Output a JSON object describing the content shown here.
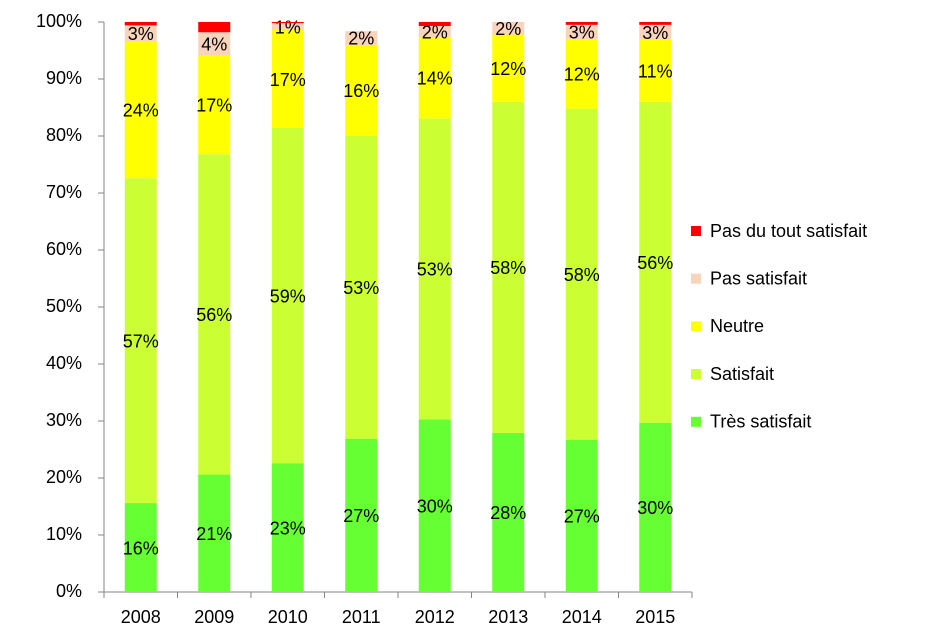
{
  "chart_data": {
    "type": "stacked_bar",
    "categories": [
      "2008",
      "2009",
      "2010",
      "2011",
      "2012",
      "2013",
      "2014",
      "2015"
    ],
    "series": [
      {
        "name": "Très satisfait",
        "color": "#66ff33",
        "values": [
          15.6,
          20.6,
          22.6,
          26.9,
          30.3,
          27.9,
          26.7,
          29.7
        ],
        "value_labels": [
          "16%",
          "21%",
          "23%",
          "27%",
          "30%",
          "28%",
          "27%",
          "30%"
        ]
      },
      {
        "name": "Satisfait",
        "color": "#ccff33",
        "values": [
          57,
          56.2,
          58.8,
          53.1,
          52.8,
          58.1,
          58.1,
          56.3
        ],
        "value_labels": [
          "57%",
          "56%",
          "59%",
          "53%",
          "53%",
          "58%",
          "58%",
          "56%"
        ]
      },
      {
        "name": "Neutre",
        "color": "#ffff00",
        "values": [
          24,
          17.3,
          17.2,
          16.0,
          14.2,
          11.8,
          12.2,
          10.9
        ],
        "value_labels": [
          "24%",
          "17%",
          "17%",
          "16%",
          "14%",
          "12%",
          "12%",
          "11%"
        ]
      },
      {
        "name": "Pas satisfait",
        "color": "#fad3bb",
        "values": [
          2.8,
          4.1,
          1.2,
          2.4,
          2.0,
          2.2,
          2.5,
          2.6
        ],
        "value_labels": [
          "3%",
          "4%",
          "1%",
          "2%",
          "2%",
          "2%",
          "3%",
          "3%"
        ]
      },
      {
        "name": "Pas du tout satisfait",
        "color": "#ff0000",
        "values": [
          0.6,
          1.8,
          0.2,
          0,
          0.7,
          0,
          0.5,
          0.5
        ]
      }
    ],
    "ylim": [
      0,
      100
    ],
    "yticks": [
      {
        "value": 0,
        "label": "0%"
      },
      {
        "value": 10,
        "label": "10%"
      },
      {
        "value": 20,
        "label": "20%"
      },
      {
        "value": 30,
        "label": "30%"
      },
      {
        "value": 40,
        "label": "40%"
      },
      {
        "value": 50,
        "label": "50%"
      },
      {
        "value": 60,
        "label": "60%"
      },
      {
        "value": 70,
        "label": "70%"
      },
      {
        "value": 80,
        "label": "80%"
      },
      {
        "value": 90,
        "label": "90%"
      },
      {
        "value": 100,
        "label": "100%"
      }
    ],
    "grid": false,
    "legend": "right"
  }
}
